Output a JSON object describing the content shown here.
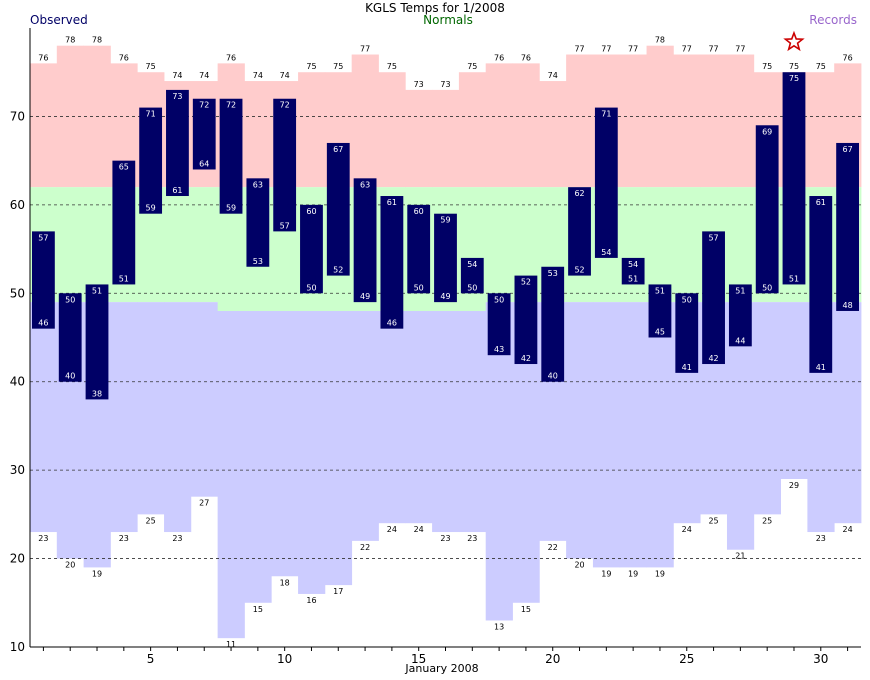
{
  "chart_data": {
    "type": "bar",
    "title": "KGLS Temps for 1/2008",
    "legend": {
      "observed": "Observed",
      "normals": "Normals",
      "records": "Records"
    },
    "xlabel": "January 2008",
    "ylim": [
      10,
      80
    ],
    "xlim": [
      0.5,
      31.5
    ],
    "yticks": [
      10,
      20,
      30,
      40,
      50,
      60,
      70
    ],
    "xticks": [
      5,
      10,
      15,
      20,
      25,
      30
    ],
    "grid": "horizontal dashed",
    "days": [
      1,
      2,
      3,
      4,
      5,
      6,
      7,
      8,
      9,
      10,
      11,
      12,
      13,
      14,
      15,
      16,
      17,
      18,
      19,
      20,
      21,
      22,
      23,
      24,
      25,
      26,
      27,
      28,
      29,
      30,
      31
    ],
    "record_high": [
      76,
      78,
      78,
      76,
      75,
      74,
      74,
      76,
      74,
      74,
      75,
      75,
      77,
      75,
      73,
      73,
      75,
      76,
      76,
      74,
      77,
      77,
      77,
      78,
      77,
      77,
      77,
      75,
      75,
      75,
      76
    ],
    "record_low": [
      23,
      20,
      19,
      23,
      25,
      23,
      27,
      11,
      15,
      18,
      16,
      17,
      22,
      24,
      24,
      23,
      23,
      13,
      15,
      22,
      20,
      19,
      19,
      19,
      24,
      25,
      21,
      25,
      29,
      23,
      24
    ],
    "normal_high": [
      62,
      62,
      62,
      62,
      62,
      62,
      62,
      62,
      62,
      62,
      62,
      62,
      62,
      62,
      62,
      62,
      62,
      62,
      62,
      62,
      62,
      62,
      62,
      62,
      62,
      62,
      62,
      62,
      62,
      62,
      62
    ],
    "normal_low": [
      49,
      49,
      49,
      49,
      49,
      49,
      49,
      48,
      48,
      48,
      48,
      48,
      48,
      48,
      48,
      48,
      48,
      49,
      49,
      49,
      49,
      49,
      49,
      49,
      49,
      49,
      49,
      49,
      49,
      49,
      49
    ],
    "observed_high": [
      57,
      50,
      51,
      65,
      71,
      73,
      72,
      72,
      63,
      72,
      60,
      67,
      63,
      61,
      60,
      59,
      54,
      50,
      52,
      53,
      62,
      71,
      54,
      51,
      50,
      57,
      51,
      69,
      75,
      61,
      67
    ],
    "observed_low": [
      46,
      40,
      38,
      51,
      59,
      61,
      64,
      59,
      53,
      57,
      50,
      52,
      49,
      46,
      50,
      49,
      50,
      43,
      42,
      40,
      52,
      54,
      51,
      45,
      41,
      42,
      44,
      50,
      51,
      41,
      48
    ],
    "record_markers": [
      {
        "day": 29,
        "value": 75,
        "symbol": "star"
      }
    ],
    "colors": {
      "observed": "#000066",
      "normals_fill": "#ccffcc",
      "record_high_fill": "#ffcccc",
      "record_low_fill": "#ccccff",
      "normals_text": "#006600",
      "records_text": "#9966cc",
      "star": "#cc0000"
    }
  }
}
